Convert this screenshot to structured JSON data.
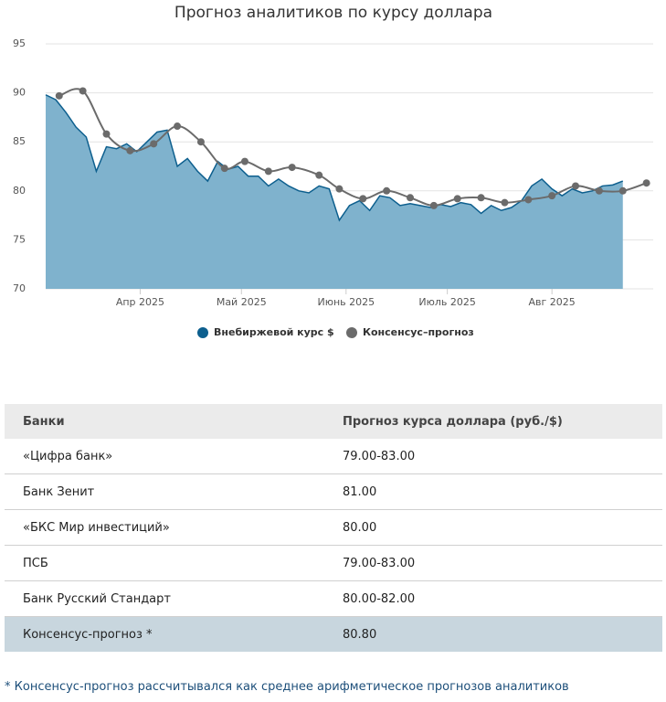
{
  "chart_data": {
    "type": "area",
    "title": "Прогноз аналитиков по курсу доллара",
    "xlim": [
      63,
      243
    ],
    "xticks": [
      {
        "value": 91,
        "label": "Апр 2025"
      },
      {
        "value": 121,
        "label": "Май 2025"
      },
      {
        "value": 152,
        "label": "Июнь 2025"
      },
      {
        "value": 182,
        "label": "Июль 2025"
      },
      {
        "value": 213,
        "label": "Авг 2025"
      }
    ],
    "ylim": [
      70,
      95
    ],
    "yticks": [
      70,
      75,
      80,
      85,
      90,
      95
    ],
    "grid": true,
    "legend": "bottom",
    "series": [
      {
        "name": "Внебиржевой курс $",
        "color": "#0d5f8e",
        "fill": "#7fb2cd",
        "x": [
          63,
          66,
          69,
          72,
          75,
          78,
          81,
          84,
          87,
          90,
          93,
          96,
          99,
          102,
          105,
          108,
          111,
          114,
          117,
          120,
          123,
          126,
          129,
          132,
          135,
          138,
          141,
          144,
          147,
          150,
          153,
          156,
          159,
          162,
          165,
          168,
          171,
          174,
          177,
          180,
          183,
          186,
          189,
          192,
          195,
          198,
          201,
          204,
          207,
          210,
          213,
          216,
          219,
          222,
          225,
          228,
          231,
          234
        ],
        "values": [
          89.8,
          89.3,
          88.0,
          86.5,
          85.5,
          82.0,
          84.5,
          84.3,
          84.8,
          84.0,
          85.0,
          86.0,
          86.2,
          82.5,
          83.3,
          82.0,
          81.0,
          83.0,
          82.2,
          82.5,
          81.5,
          81.5,
          80.5,
          81.2,
          80.5,
          80.0,
          79.8,
          80.5,
          80.2,
          77.0,
          78.5,
          79.0,
          78.0,
          79.5,
          79.3,
          78.5,
          78.7,
          78.5,
          78.3,
          78.6,
          78.4,
          78.8,
          78.6,
          77.7,
          78.5,
          78.0,
          78.3,
          79.0,
          80.5,
          81.2,
          80.2,
          79.5,
          80.2,
          79.8,
          80.0,
          80.5,
          80.6,
          81.0
        ]
      },
      {
        "name": "Консенсус–прогноз",
        "color": "#6b6b6b",
        "x": [
          67,
          74,
          81,
          88,
          95,
          102,
          109,
          116,
          122,
          129,
          136,
          144,
          150,
          157,
          164,
          171,
          178,
          185,
          192,
          199,
          206,
          213,
          220,
          227,
          234,
          241
        ],
        "values": [
          89.7,
          90.2,
          85.8,
          84.1,
          84.8,
          86.6,
          85.0,
          82.3,
          83.0,
          82.0,
          82.4,
          81.6,
          80.2,
          79.2,
          80.0,
          79.3,
          78.5,
          79.2,
          79.3,
          78.8,
          79.1,
          79.5,
          80.5,
          80.0,
          80.0,
          80.8
        ]
      }
    ]
  },
  "table": {
    "header": [
      "Банки",
      "Прогноз курса доллара (руб./$)"
    ],
    "rows": [
      [
        "«Цифра банк»",
        "79.00-83.00"
      ],
      [
        "Банк Зенит",
        "81.00"
      ],
      [
        "«БКС Мир инвестиций»",
        "80.00"
      ],
      [
        "ПСБ",
        "79.00-83.00"
      ],
      [
        "Банк Русский Стандарт",
        "80.00-82.00"
      ],
      [
        "Консенсус-прогноз *",
        "80.80"
      ]
    ]
  },
  "footnote": "* Консенсус-прогноз рассчитывался как среднее арифметическое прогнозов аналитиков"
}
